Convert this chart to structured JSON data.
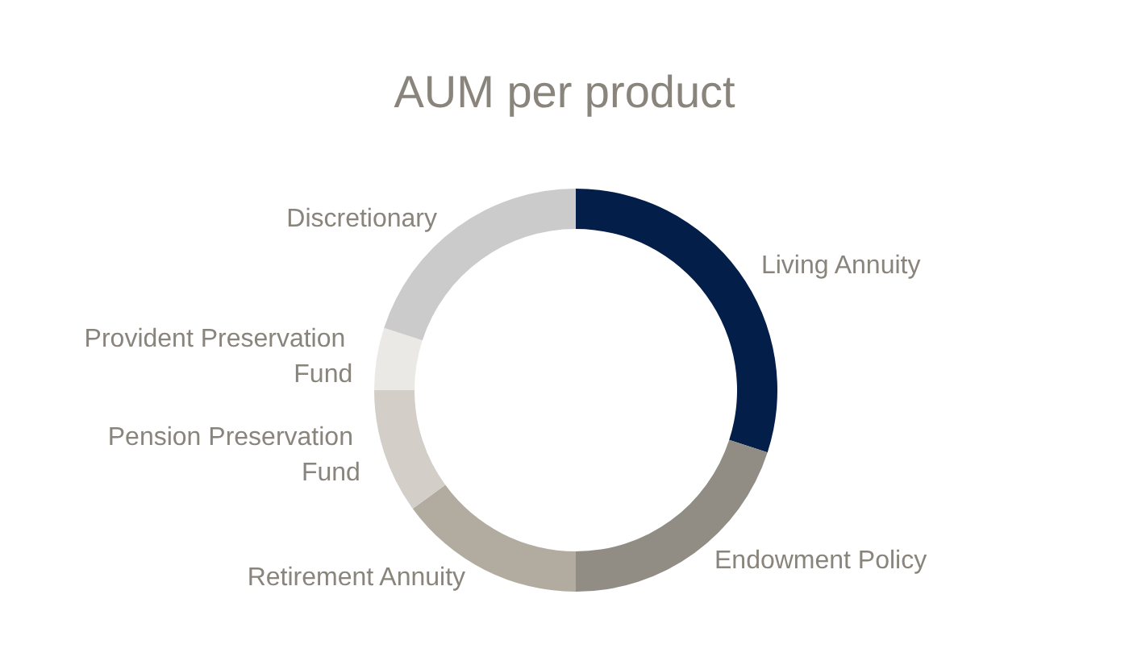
{
  "chart_data": {
    "type": "donut",
    "title": "AUM per product",
    "categories": [
      "Living Annuity",
      "Endowment Policy",
      "Retirement Annuity",
      "Pension Preservation Fund",
      "Provident Preservation Fund",
      "Discretionary"
    ],
    "values": [
      30,
      20,
      15,
      10,
      5,
      20
    ],
    "colors": [
      "#041e4a",
      "#918d85",
      "#b2aca0",
      "#d3cfc8",
      "#ebe9e5",
      "#cbcbcb"
    ],
    "legend": false
  }
}
